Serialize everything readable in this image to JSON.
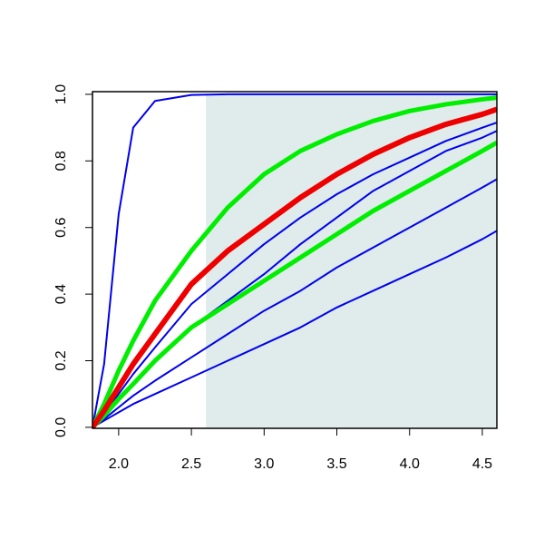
{
  "chart_data": {
    "type": "line",
    "x": [
      1.82,
      1.9,
      2.0,
      2.1,
      2.25,
      2.5,
      2.75,
      3.0,
      3.25,
      3.5,
      3.75,
      4.0,
      4.25,
      4.5,
      4.6
    ],
    "series": [
      {
        "color": "#0000ee",
        "width": 2,
        "values": [
          0,
          0.19,
          0.64,
          0.9,
          0.98,
          0.998,
          1,
          1,
          1,
          1,
          1,
          1,
          1,
          1,
          1
        ]
      },
      {
        "color": "#0000ee",
        "width": 2,
        "values": [
          0,
          0.04,
          0.1,
          0.16,
          0.24,
          0.37,
          0.46,
          0.55,
          0.63,
          0.7,
          0.76,
          0.81,
          0.86,
          0.9,
          0.915
        ]
      },
      {
        "color": "#0000ee",
        "width": 2,
        "values": [
          0,
          0.03,
          0.08,
          0.13,
          0.2,
          0.3,
          0.38,
          0.46,
          0.55,
          0.63,
          0.71,
          0.77,
          0.83,
          0.87,
          0.89
        ]
      },
      {
        "color": "#0000ee",
        "width": 2,
        "values": [
          0,
          0.025,
          0.06,
          0.095,
          0.14,
          0.21,
          0.28,
          0.35,
          0.41,
          0.48,
          0.54,
          0.6,
          0.66,
          0.72,
          0.745
        ]
      },
      {
        "color": "#0000ee",
        "width": 2,
        "values": [
          0,
          0.02,
          0.045,
          0.07,
          0.1,
          0.15,
          0.2,
          0.25,
          0.3,
          0.36,
          0.41,
          0.46,
          0.51,
          0.565,
          0.59
        ]
      },
      {
        "color": "#00ee00",
        "width": 5,
        "values": [
          0,
          0.07,
          0.17,
          0.26,
          0.38,
          0.53,
          0.66,
          0.76,
          0.83,
          0.88,
          0.92,
          0.95,
          0.97,
          0.985,
          0.99
        ]
      },
      {
        "color": "#00ee00",
        "width": 5,
        "values": [
          0,
          0.035,
          0.085,
          0.13,
          0.2,
          0.3,
          0.37,
          0.44,
          0.51,
          0.58,
          0.65,
          0.71,
          0.77,
          0.83,
          0.855
        ]
      },
      {
        "color": "#ee0000",
        "width": 6,
        "values": [
          0,
          0.05,
          0.12,
          0.19,
          0.28,
          0.43,
          0.53,
          0.61,
          0.69,
          0.76,
          0.82,
          0.87,
          0.91,
          0.94,
          0.955
        ]
      }
    ],
    "shade_x": [
      2.6,
      4.6
    ],
    "shade_y": [
      0,
      1
    ],
    "shade_color": "#dfeceb",
    "xlim": [
      1.82,
      4.6
    ],
    "ylim": [
      -0.003,
      1.008
    ],
    "xticks": [
      {
        "value": 2,
        "label": "2.0"
      },
      2.5,
      {
        "value": 3,
        "label": "3.0"
      },
      3.5,
      {
        "value": 4,
        "label": "4.0"
      },
      4.5
    ],
    "yticks": [
      {
        "value": 0,
        "label": "0.0"
      },
      0.2,
      0.4,
      0.6,
      0.8,
      {
        "value": 1,
        "label": "1.0"
      }
    ]
  }
}
